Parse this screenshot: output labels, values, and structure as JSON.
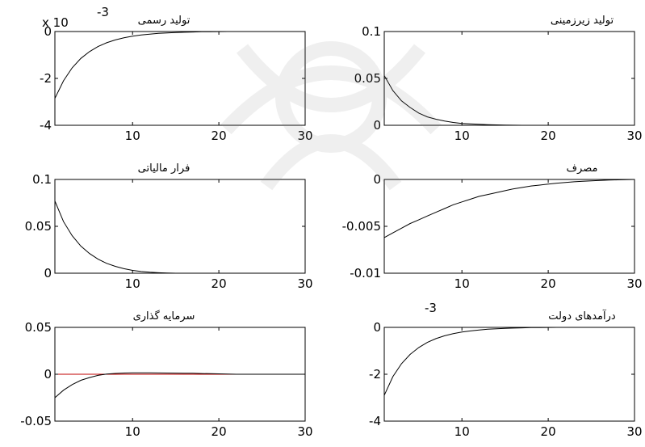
{
  "colors": {
    "response": "#000000",
    "zero_line": "#c00000",
    "axes": "#000000",
    "watermark": "#808080"
  },
  "chart_data": [
    {
      "type": "line",
      "title": "تولید رسمی",
      "scale_label": "x 10",
      "scale_exponent": "-3",
      "x": [
        1,
        2,
        3,
        4,
        5,
        6,
        7,
        8,
        9,
        10,
        11,
        12,
        13,
        14,
        15,
        16,
        17,
        18,
        19,
        20,
        21,
        22,
        23,
        24,
        25,
        26,
        27,
        28,
        29,
        30
      ],
      "series": [
        {
          "values": [
            -2.85,
            -2.1,
            -1.55,
            -1.15,
            -0.86,
            -0.64,
            -0.48,
            -0.36,
            -0.27,
            -0.2,
            -0.15,
            -0.11,
            -0.08,
            -0.06,
            -0.045,
            -0.03,
            -0.02,
            -0.012,
            -0.006,
            -0.002,
            0,
            0,
            0,
            0,
            0,
            0,
            0,
            0,
            0,
            0
          ]
        }
      ],
      "zero_line": 0,
      "xlim": [
        1,
        30
      ],
      "ylim": [
        -4,
        0
      ],
      "xticks": [
        "10",
        "20",
        "30"
      ],
      "yticks": [
        "0",
        "-2",
        "-4"
      ],
      "grid": false
    },
    {
      "type": "line",
      "title": "تولید زیرزمینی",
      "x": [
        1,
        2,
        3,
        4,
        5,
        6,
        7,
        8,
        9,
        10,
        11,
        12,
        13,
        14,
        15,
        16,
        17,
        18,
        19,
        20,
        21,
        22,
        23,
        24,
        25,
        26,
        27,
        28,
        29,
        30
      ],
      "series": [
        {
          "values": [
            0.053,
            0.037,
            0.026,
            0.019,
            0.013,
            0.009,
            0.0065,
            0.0045,
            0.003,
            0.002,
            0.0015,
            0.001,
            0.0007,
            0.0004,
            0.0002,
            0.0001,
            0,
            0,
            0,
            0,
            0,
            0,
            0,
            0,
            0,
            0,
            0,
            0,
            0,
            0
          ]
        }
      ],
      "zero_line": 0,
      "xlim": [
        1,
        30
      ],
      "ylim": [
        0,
        0.1
      ],
      "xticks": [
        "10",
        "20",
        "30"
      ],
      "yticks": [
        "0.1",
        "0.05",
        "0"
      ],
      "grid": false
    },
    {
      "type": "line",
      "title": "فرار مالیاتی",
      "x": [
        1,
        2,
        3,
        4,
        5,
        6,
        7,
        8,
        9,
        10,
        11,
        12,
        13,
        14,
        15,
        16,
        17,
        18,
        19,
        20,
        21,
        22,
        23,
        24,
        25,
        26,
        27,
        28,
        29,
        30
      ],
      "series": [
        {
          "values": [
            0.077,
            0.055,
            0.04,
            0.029,
            0.021,
            0.015,
            0.0105,
            0.0073,
            0.0048,
            0.003,
            0.0018,
            0.001,
            0.0005,
            0.0002,
            0,
            0,
            0,
            0,
            0,
            0,
            0,
            0,
            0,
            0,
            0,
            0,
            0,
            0,
            0,
            0
          ]
        }
      ],
      "zero_line": 0,
      "xlim": [
        1,
        30
      ],
      "ylim": [
        0,
        0.1
      ],
      "xticks": [
        "10",
        "20",
        "30"
      ],
      "yticks": [
        "0.1",
        "0.05",
        "0"
      ],
      "grid": false
    },
    {
      "type": "line",
      "title": "مصرف",
      "x": [
        1,
        2,
        3,
        4,
        5,
        6,
        7,
        8,
        9,
        10,
        11,
        12,
        13,
        14,
        15,
        16,
        17,
        18,
        19,
        20,
        21,
        22,
        23,
        24,
        25,
        26,
        27,
        28,
        29,
        30
      ],
      "series": [
        {
          "values": [
            -0.0062,
            -0.0057,
            -0.0052,
            -0.0047,
            -0.0043,
            -0.0039,
            -0.0035,
            -0.0031,
            -0.0027,
            -0.0024,
            -0.0021,
            -0.0018,
            -0.0016,
            -0.0014,
            -0.0012,
            -0.001,
            -0.00085,
            -0.0007,
            -0.0006,
            -0.0005,
            -0.0004,
            -0.00032,
            -0.00025,
            -0.0002,
            -0.00015,
            -0.0001,
            -7e-05,
            -4e-05,
            -2e-05,
            0
          ]
        }
      ],
      "zero_line": 0,
      "xlim": [
        1,
        30
      ],
      "ylim": [
        -0.01,
        0
      ],
      "xticks": [
        "10",
        "20",
        "30"
      ],
      "yticks": [
        "0",
        "-0.005",
        "-0.01"
      ],
      "grid": false
    },
    {
      "type": "line",
      "title": "سرمایه گذاری",
      "x": [
        1,
        2,
        3,
        4,
        5,
        6,
        7,
        8,
        9,
        10,
        11,
        12,
        13,
        14,
        15,
        16,
        17,
        18,
        19,
        20,
        21,
        22,
        23,
        24,
        25,
        26,
        27,
        28,
        29,
        30
      ],
      "series": [
        {
          "values": [
            -0.025,
            -0.017,
            -0.011,
            -0.0065,
            -0.0035,
            -0.0012,
            0.0002,
            0.0009,
            0.0013,
            0.0015,
            0.0015,
            0.0015,
            0.0014,
            0.0013,
            0.0012,
            0.0011,
            0.001,
            0.0008,
            0.0006,
            0.0004,
            0.0002,
            0,
            0,
            0,
            0,
            0,
            0,
            0,
            0,
            0
          ]
        }
      ],
      "zero_line": 0,
      "xlim": [
        1,
        30
      ],
      "ylim": [
        -0.05,
        0.05
      ],
      "xticks": [
        "10",
        "20",
        "30"
      ],
      "yticks": [
        "0.05",
        "0",
        "-0.05"
      ],
      "grid": false
    },
    {
      "type": "line",
      "title": "درآمدهای دولت",
      "scale_exponent": "-3",
      "x": [
        1,
        2,
        3,
        4,
        5,
        6,
        7,
        8,
        9,
        10,
        11,
        12,
        13,
        14,
        15,
        16,
        17,
        18,
        19,
        20,
        21,
        22,
        23,
        24,
        25,
        26,
        27,
        28,
        29,
        30
      ],
      "series": [
        {
          "values": [
            -2.9,
            -2.1,
            -1.55,
            -1.15,
            -0.86,
            -0.64,
            -0.48,
            -0.36,
            -0.27,
            -0.2,
            -0.15,
            -0.11,
            -0.08,
            -0.06,
            -0.045,
            -0.03,
            -0.02,
            -0.012,
            -0.006,
            -0.002,
            0,
            0,
            0,
            0,
            0,
            0,
            0,
            0,
            0,
            0
          ]
        }
      ],
      "zero_line": 0,
      "xlim": [
        1,
        30
      ],
      "ylim": [
        -4,
        0
      ],
      "xticks": [
        "10",
        "20",
        "30"
      ],
      "yticks": [
        "0",
        "-2",
        "-4"
      ],
      "grid": false
    }
  ]
}
